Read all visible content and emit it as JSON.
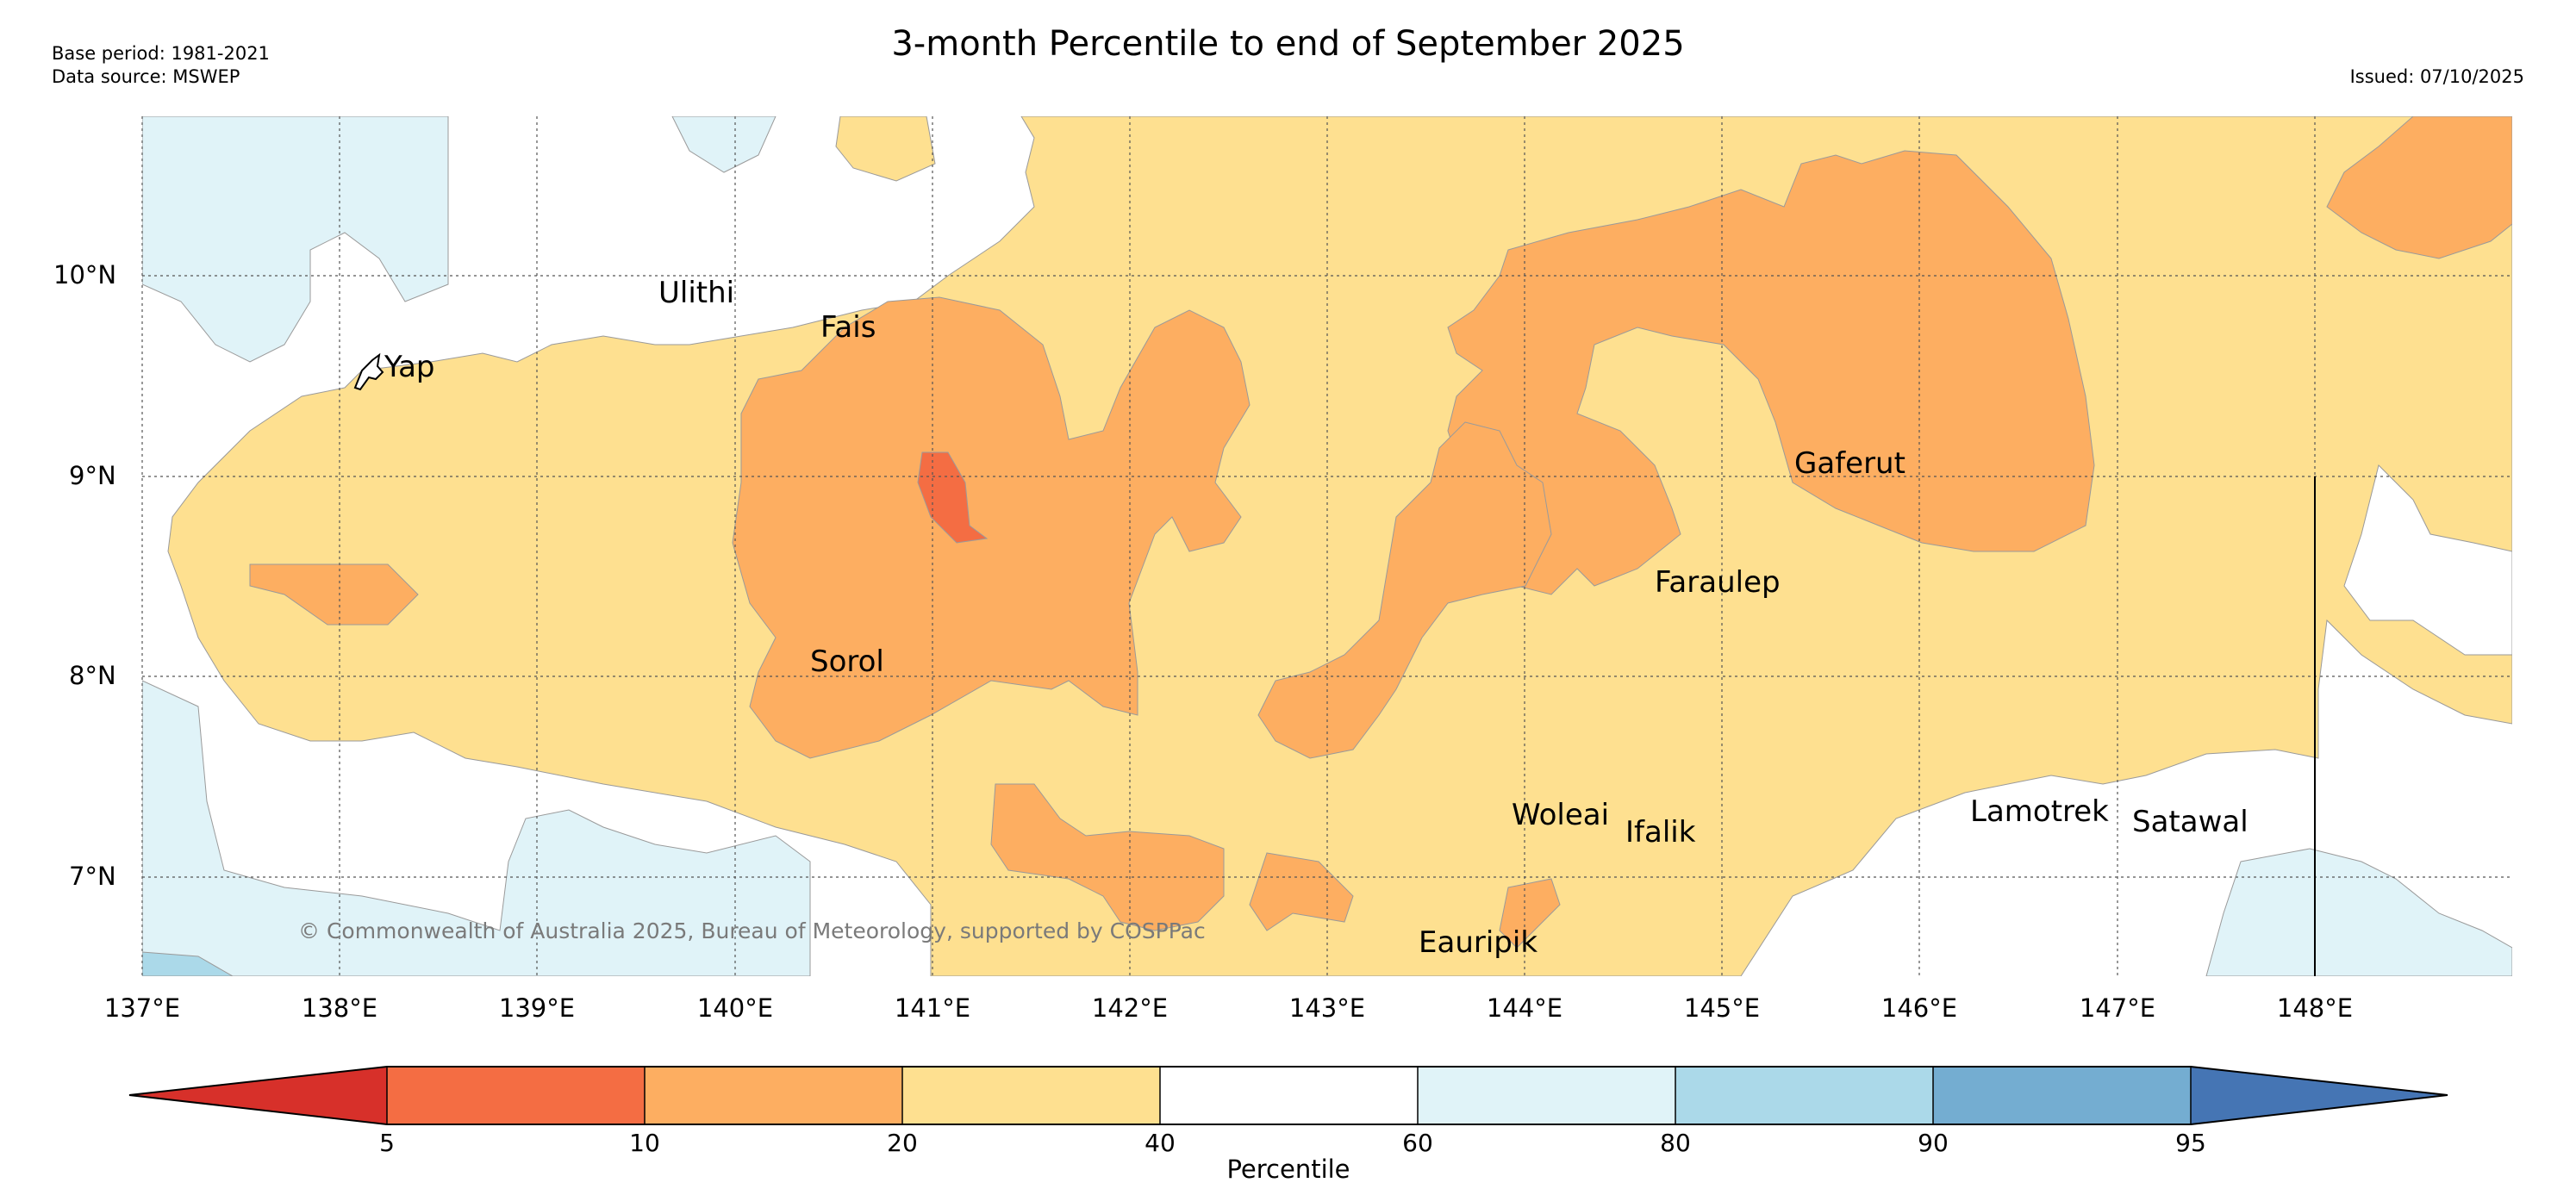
{
  "header": {
    "title": "3-month Percentile to end of September 2025",
    "base_period": "Base period: 1981-2021",
    "data_source": "Data source: MSWEP",
    "issued": "Issued: 07/10/2025"
  },
  "map": {
    "lon_ticks": [
      "137°E",
      "138°E",
      "139°E",
      "140°E",
      "141°E",
      "142°E",
      "143°E",
      "144°E",
      "145°E",
      "146°E",
      "147°E",
      "148°E"
    ],
    "lat_ticks": [
      "10°N",
      "9°N",
      "8°N",
      "7°N"
    ],
    "places": [
      {
        "id": "ulithi",
        "name": "Ulithi"
      },
      {
        "id": "fais",
        "name": "Fais"
      },
      {
        "id": "yap",
        "name": "Yap"
      },
      {
        "id": "gaferut",
        "name": "Gaferut"
      },
      {
        "id": "faraulep",
        "name": "Faraulep"
      },
      {
        "id": "sorol",
        "name": "Sorol"
      },
      {
        "id": "woleai",
        "name": "Woleai"
      },
      {
        "id": "ifalik",
        "name": "Ifalik"
      },
      {
        "id": "lamotrek",
        "name": "Lamotrek"
      },
      {
        "id": "satawal",
        "name": "Satawal"
      },
      {
        "id": "eauripik",
        "name": "Eauripik"
      }
    ],
    "copyright": "© Commonwealth of Australia 2025, Bureau of Meteorology, supported by COSPPac"
  },
  "colorbar": {
    "label": "Percentile",
    "ticks": [
      "5",
      "10",
      "20",
      "40",
      "60",
      "80",
      "90",
      "95"
    ],
    "colors": [
      "#d7302a",
      "#f46d43",
      "#fdae61",
      "#fee090",
      "#ffffff",
      "#e0f3f8",
      "#abd9e9",
      "#74add1",
      "#4575b4"
    ]
  },
  "palette": {
    "p5_10": "#f46d43",
    "p10_20": "#fdae61",
    "p20_40": "#fee090",
    "p40_60": "#ffffff",
    "p60_80": "#e0f3f8",
    "p80_90": "#abd9e9"
  }
}
